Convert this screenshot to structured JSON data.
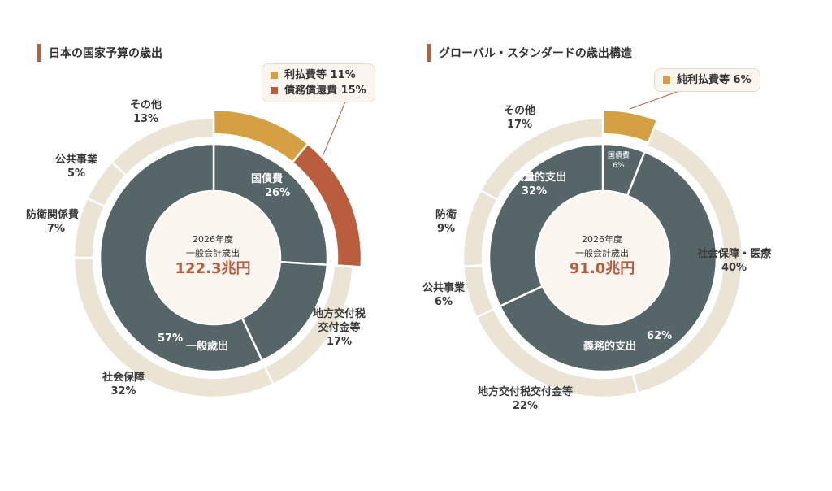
{
  "left": {
    "title": "日本の国家予算の歳出",
    "center": {
      "line1": "2026年度",
      "line2": "一般会計歳出",
      "total": "122.3兆円"
    },
    "legend": [
      {
        "label": "利払費等 11%",
        "color": "#d4a043"
      },
      {
        "label": "債務償還費 15%",
        "color": "#b95d3c"
      }
    ]
  },
  "right": {
    "title": "グローバル・スタンダードの歳出構造",
    "center": {
      "line1": "2026年度",
      "line2": "一般会計歳出",
      "total": "91.0兆円"
    },
    "legend": [
      {
        "label": "純利払費等 6%",
        "color": "#d4a043"
      }
    ]
  },
  "chart_data": [
    {
      "type": "pie",
      "title": "日本の国家予算の歳出",
      "total": "122.3兆円",
      "inner": [
        {
          "label": "国債費",
          "value": 26,
          "color": "#566568"
        },
        {
          "label": "地方交付税交付金等",
          "value": 17,
          "color": "#566568"
        },
        {
          "label": "一般歳出",
          "value": 57,
          "color": "#566568"
        }
      ],
      "outer": [
        {
          "label": "利払費等",
          "value": 11,
          "color": "#d4a043"
        },
        {
          "label": "債務償還費",
          "value": 15,
          "color": "#b95d3c"
        },
        {
          "label": "地方交付税交付金等",
          "value": 17,
          "color": "#ebe3d4"
        },
        {
          "label": "社会保障",
          "value": 32,
          "color": "#ebe3d4"
        },
        {
          "label": "防衛関係費",
          "value": 7,
          "color": "#ebe3d4"
        },
        {
          "label": "公共事業",
          "value": 5,
          "color": "#ebe3d4"
        },
        {
          "label": "その他",
          "value": 13,
          "color": "#ebe3d4"
        }
      ],
      "labels": {
        "inner": [
          {
            "name": "国債費",
            "pct": "26%"
          },
          {
            "name": "一般歳出",
            "pct": "57%"
          }
        ],
        "outer": [
          {
            "name": "その他",
            "pct": "13%"
          },
          {
            "name": "公共事業",
            "pct": "5%"
          },
          {
            "name": "防衛関係費",
            "pct": "7%"
          },
          {
            "name": "社会保障",
            "pct": "32%"
          },
          {
            "name1": "地方交付税",
            "name2": "交付金等",
            "pct": "17%"
          }
        ]
      }
    },
    {
      "type": "pie",
      "title": "グローバル・スタンダードの歳出構造",
      "total": "91.0兆円",
      "inner": [
        {
          "label": "国債費",
          "value": 6,
          "color": "#566568"
        },
        {
          "label": "義務的支出",
          "value": 62,
          "color": "#566568"
        },
        {
          "label": "裁量的支出",
          "value": 32,
          "color": "#566568"
        }
      ],
      "outer": [
        {
          "label": "純利払費等",
          "value": 6,
          "color": "#d4a043"
        },
        {
          "label": "社会保障・医療",
          "value": 40,
          "color": "#ebe3d4"
        },
        {
          "label": "地方交付税交付金等",
          "value": 22,
          "color": "#ebe3d4"
        },
        {
          "label": "公共事業",
          "value": 6,
          "color": "#ebe3d4"
        },
        {
          "label": "防衛",
          "value": 9,
          "color": "#ebe3d4"
        },
        {
          "label": "その他",
          "value": 17,
          "color": "#ebe3d4"
        }
      ],
      "labels": {
        "inner": [
          {
            "name": "国債費",
            "pct": "6%"
          },
          {
            "name": "裁量的支出",
            "pct": "32%"
          },
          {
            "name": "義務的支出",
            "pct": "62%"
          }
        ],
        "outer": [
          {
            "name": "その他",
            "pct": "17%"
          },
          {
            "name": "防衛",
            "pct": "9%"
          },
          {
            "name": "公共事業",
            "pct": "6%"
          },
          {
            "name": "社会保障・医療",
            "pct": "40%"
          },
          {
            "name": "地方交付税交付金等",
            "pct": "22%"
          }
        ]
      }
    }
  ]
}
